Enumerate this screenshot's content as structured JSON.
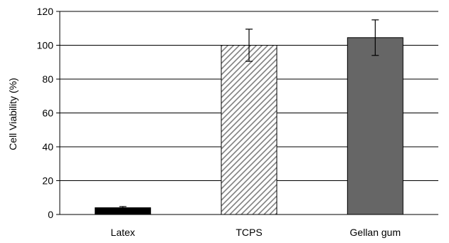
{
  "chart_data": {
    "type": "bar",
    "title": "",
    "xlabel": "",
    "ylabel": "Cell Viability (%)",
    "ylim": [
      0,
      120
    ],
    "yticks": [
      0,
      20,
      40,
      60,
      80,
      100,
      120
    ],
    "grid": true,
    "legend": "none",
    "categories": [
      "Latex",
      "TCPS",
      "Gellan gum"
    ],
    "values": [
      4,
      100,
      104.5
    ],
    "errors": [
      0.7,
      9.5,
      10.5
    ],
    "bar_styles": [
      {
        "fill": "#000000",
        "pattern": "solid"
      },
      {
        "fill": "#ffffff",
        "pattern": "diagonal-hatch",
        "hatch_color": "#808080"
      },
      {
        "fill": "#666666",
        "pattern": "solid"
      }
    ]
  }
}
